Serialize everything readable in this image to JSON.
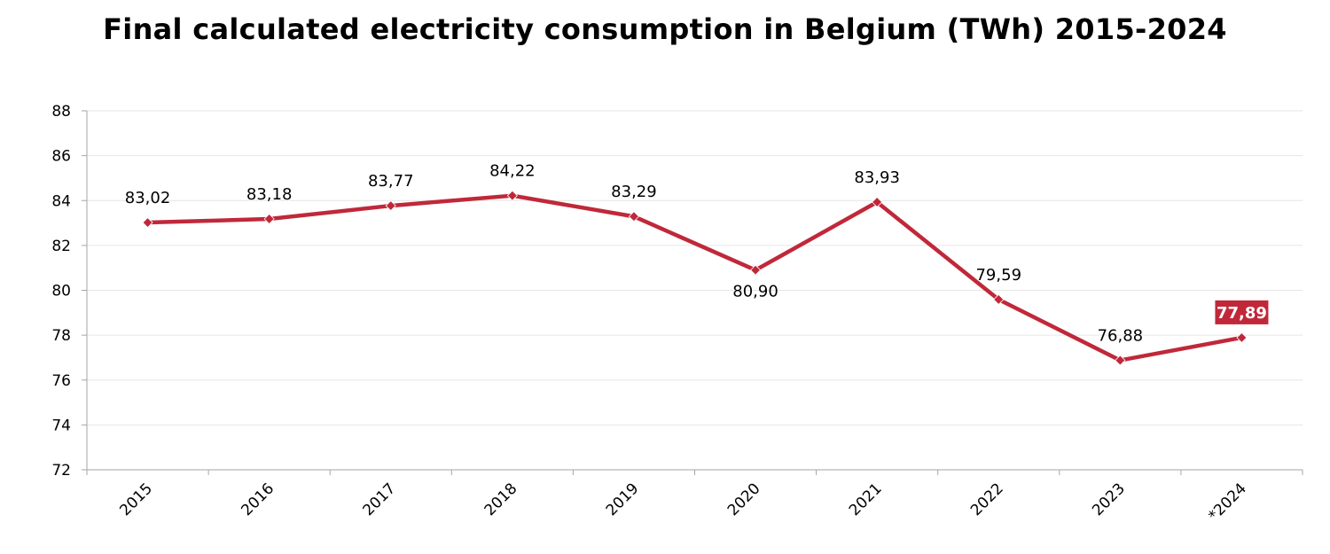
{
  "chart_data": {
    "type": "line",
    "title": "Final calculated electricity consumption in Belgium (TWh) 2015-2024",
    "xlabel": "",
    "ylabel": "",
    "categories": [
      "2015",
      "2016",
      "2017",
      "2018",
      "2019",
      "2020",
      "2021",
      "2022",
      "2023",
      "*2024"
    ],
    "series": [
      {
        "values": [
          83.02,
          83.18,
          83.77,
          84.22,
          83.29,
          80.9,
          83.93,
          79.59,
          76.88,
          77.89
        ],
        "labels": [
          "83,02",
          "83,18",
          "83,77",
          "84,22",
          "83,29",
          "80,90",
          "83,93",
          "79,59",
          "76,88",
          "77,89"
        ],
        "label_positions": [
          "above",
          "above",
          "above",
          "above",
          "above",
          "below",
          "above",
          "above",
          "above",
          "above"
        ],
        "highlighted_index": 9,
        "color": "#C0283A",
        "marker": "diamond"
      }
    ],
    "ylim": [
      72,
      88
    ],
    "yticks": [
      "72",
      "74",
      "76",
      "78",
      "80",
      "82",
      "84",
      "86",
      "88"
    ],
    "grid": true,
    "legend": "none",
    "colors": {
      "line": "#C0283A",
      "grid": "#E6E6E6",
      "axis": "#A6A6A6",
      "highlight_box": "#C0283A"
    }
  }
}
